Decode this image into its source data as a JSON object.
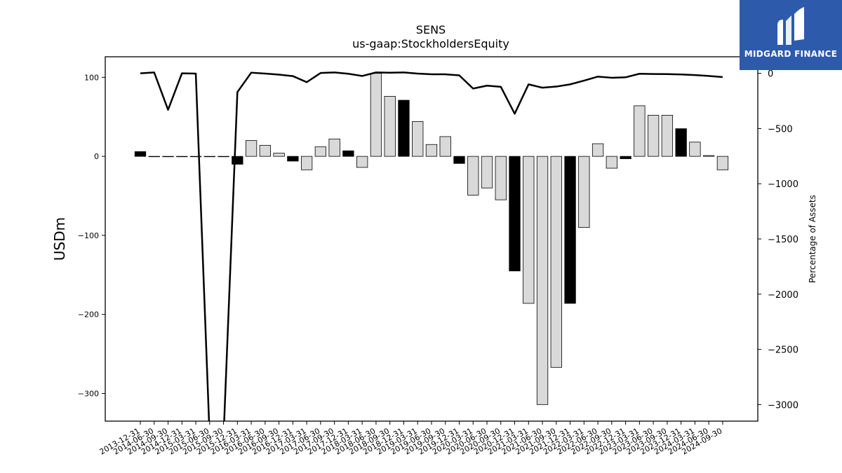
{
  "brand": {
    "name": "MIDGARD FINANCE",
    "logo_icon": "midgard-logo-icon",
    "bg_color": "#2e5aac"
  },
  "chart_data": {
    "type": "bar",
    "title": "SENS",
    "subtitle": "us-gaap:StockholdersEquity",
    "ylabel": "USDm",
    "y2label": "Percentage of Assets",
    "ylim": [
      -335,
      126
    ],
    "y2lim": [
      -3150,
      150
    ],
    "yticks": [
      100,
      0,
      -100,
      -200,
      -300
    ],
    "y2ticks": [
      0,
      -500,
      -1000,
      -1500,
      -2000,
      -2500,
      -3000
    ],
    "ytick_labels": [
      "100",
      "0",
      "−100",
      "−200",
      "−300"
    ],
    "y2tick_labels": [
      "0",
      "−500",
      "−1000",
      "−1500",
      "−2000",
      "−2500",
      "−3000"
    ],
    "categories": [
      "2013-12-31",
      "2014-06-30",
      "2014-09-30",
      "2014-12-31",
      "2015-03-31",
      "2015-06-30",
      "2015-09-30",
      "2015-12-31",
      "2016-03-31",
      "2016-06-30",
      "2016-09-30",
      "2016-12-31",
      "2017-03-31",
      "2017-06-30",
      "2017-09-30",
      "2017-12-31",
      "2018-03-31",
      "2018-06-30",
      "2018-09-30",
      "2018-12-31",
      "2019-03-31",
      "2019-06-30",
      "2019-09-30",
      "2019-12-31",
      "2020-03-31",
      "2020-06-30",
      "2020-09-30",
      "2020-12-31",
      "2021-03-31",
      "2021-06-30",
      "2021-09-30",
      "2021-12-31",
      "2022-03-31",
      "2022-06-30",
      "2022-09-30",
      "2022-12-31",
      "2023-03-31",
      "2023-06-30",
      "2023-09-30",
      "2023-12-31",
      "2024-03-31",
      "2024-06-30",
      "2024-09-30"
    ],
    "series": [
      {
        "type": "bar",
        "values": [
          6,
          0,
          0,
          0,
          0,
          0,
          0,
          -10,
          20,
          14,
          4,
          -6,
          -17,
          12,
          22,
          7,
          -14,
          105,
          76,
          71,
          44,
          15,
          25,
          -9,
          -49,
          -40,
          -55,
          -145,
          -186,
          -314,
          -267,
          -186,
          -90,
          16,
          -15,
          -3,
          64,
          52,
          52,
          35,
          18,
          1,
          -17
        ],
        "highlight": [
          true,
          false,
          false,
          false,
          false,
          false,
          false,
          true,
          false,
          false,
          false,
          true,
          false,
          false,
          false,
          true,
          false,
          false,
          false,
          true,
          false,
          false,
          false,
          true,
          false,
          false,
          false,
          true,
          false,
          false,
          false,
          true,
          false,
          false,
          false,
          true,
          false,
          false,
          false,
          true,
          false,
          false,
          false
        ]
      },
      {
        "type": "line",
        "axis": "right",
        "values": [
          0,
          8,
          -330,
          0,
          -2,
          -3300,
          -3300,
          -170,
          6,
          -2,
          -12,
          -25,
          -80,
          3,
          8,
          -4,
          -24,
          8,
          6,
          8,
          -2,
          -9,
          -9,
          -18,
          -138,
          -112,
          -122,
          -366,
          -100,
          -130,
          -120,
          -100,
          -66,
          -30,
          -40,
          -36,
          -4,
          -6,
          -7,
          -10,
          -16,
          -24,
          -34
        ]
      }
    ],
    "colors": {
      "bar_highlight": "#000000",
      "bar_normal": "#d9d9d9",
      "line": "#000000"
    },
    "grid": false,
    "legend": "none"
  }
}
